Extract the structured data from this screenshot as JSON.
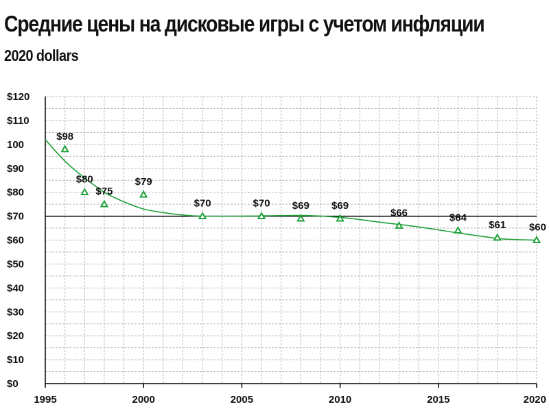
{
  "header": {
    "title": "Средние цены на дисковые игры с учетом инфляции",
    "subtitle": "2020 dollars"
  },
  "colors": {
    "series": "#1fa13a",
    "reference": "#000000",
    "grid": "#b8b8b8",
    "axis": "#000000"
  },
  "chart_data": {
    "type": "scatter",
    "title": "Средние цены на дисковые игры с учетом инфляции",
    "subtitle": "2020 dollars",
    "xlabel": "",
    "ylabel": "",
    "xlim": [
      1995,
      2020
    ],
    "ylim": [
      0,
      120
    ],
    "x_ticks": [
      {
        "value": 1995,
        "label": "1995"
      },
      {
        "value": 2000,
        "label": "2000"
      },
      {
        "value": 2005,
        "label": "2005"
      },
      {
        "value": 2010,
        "label": "2010"
      },
      {
        "value": 2015,
        "label": "2015"
      },
      {
        "value": 2020,
        "label": "2020"
      }
    ],
    "y_ticks": [
      {
        "value": 0,
        "label": "$0"
      },
      {
        "value": 10,
        "label": "$10"
      },
      {
        "value": 20,
        "label": "$20"
      },
      {
        "value": 30,
        "label": "$30"
      },
      {
        "value": 40,
        "label": "$40"
      },
      {
        "value": 50,
        "label": "$50"
      },
      {
        "value": 60,
        "label": "$60"
      },
      {
        "value": 70,
        "label": "$70"
      },
      {
        "value": 80,
        "label": "$80"
      },
      {
        "value": 90,
        "label": "$90"
      },
      {
        "value": 100,
        "label": "100"
      },
      {
        "value": 110,
        "label": "$110"
      },
      {
        "value": 120,
        "label": "$120"
      }
    ],
    "grid": true,
    "grid_style": "dashed, minor lines every $5",
    "reference_line": {
      "y": 70
    },
    "marker": "triangle-outline",
    "series": [
      {
        "points": [
          {
            "x": 1996,
            "y": 98,
            "label": "$98"
          },
          {
            "x": 1997,
            "y": 80,
            "label": "$80"
          },
          {
            "x": 1998,
            "y": 75,
            "label": "$75"
          },
          {
            "x": 2000,
            "y": 79,
            "label": "$79"
          },
          {
            "x": 2003,
            "y": 70,
            "label": "$70"
          },
          {
            "x": 2006,
            "y": 70,
            "label": "$70"
          },
          {
            "x": 2008,
            "y": 69,
            "label": "$69"
          },
          {
            "x": 2010,
            "y": 69,
            "label": "$69"
          },
          {
            "x": 2013,
            "y": 66,
            "label": "$66"
          },
          {
            "x": 2016,
            "y": 64,
            "label": "$64"
          },
          {
            "x": 2018,
            "y": 61,
            "label": "$61"
          },
          {
            "x": 2020,
            "y": 60,
            "label": "$60"
          }
        ]
      }
    ],
    "trendline": {
      "type": "smooth",
      "points": [
        [
          1995,
          102
        ],
        [
          1996,
          93
        ],
        [
          1997,
          86
        ],
        [
          1998,
          80
        ],
        [
          1999,
          76
        ],
        [
          2000,
          73
        ],
        [
          2001,
          71.5
        ],
        [
          2002,
          70.5
        ],
        [
          2003,
          70
        ],
        [
          2005,
          70
        ],
        [
          2008,
          70.3
        ],
        [
          2010,
          69.5
        ],
        [
          2012,
          67.5
        ],
        [
          2014,
          65.5
        ],
        [
          2016,
          63
        ],
        [
          2018,
          60.7
        ],
        [
          2019,
          60.2
        ],
        [
          2020,
          60
        ]
      ]
    }
  }
}
